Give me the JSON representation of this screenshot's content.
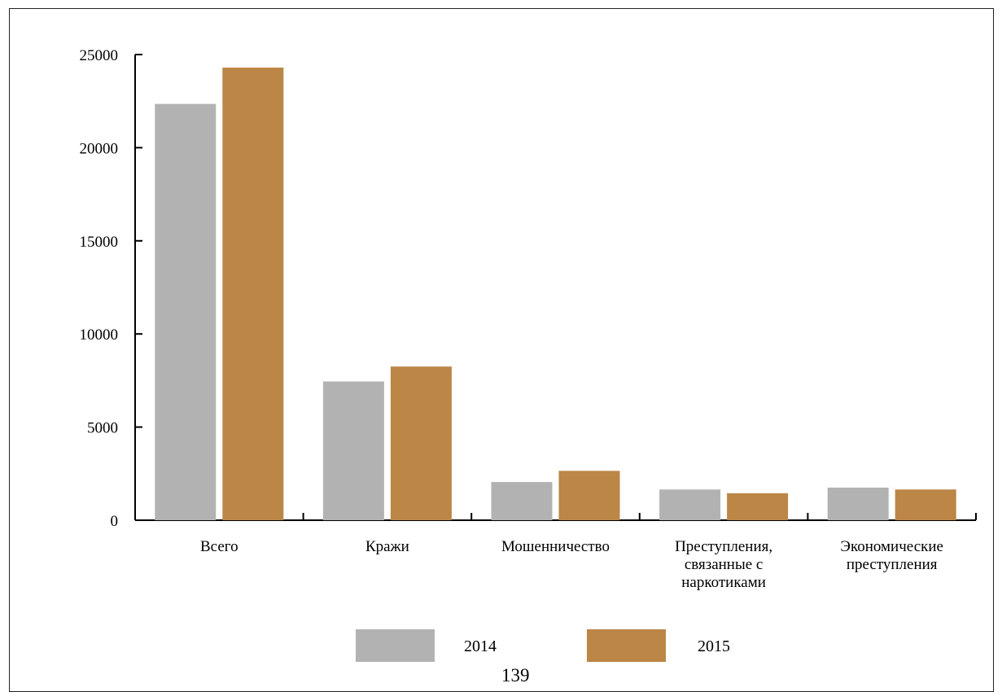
{
  "chart_data": {
    "type": "bar",
    "categories": [
      [
        "Всего"
      ],
      [
        "Кражи"
      ],
      [
        "Мошенничество"
      ],
      [
        "Преступления,",
        "связанные с",
        "наркотиками"
      ],
      [
        "Экономические",
        "преступления"
      ]
    ],
    "series": [
      {
        "name": "2014",
        "color": "#b2b2b2",
        "values": [
          22350,
          7450,
          2050,
          1650,
          1750
        ]
      },
      {
        "name": "2015",
        "color": "#bb8646",
        "values": [
          24300,
          8250,
          2650,
          1450,
          1650
        ]
      }
    ],
    "ylim": [
      0,
      25000
    ],
    "yticks": [
      0,
      5000,
      10000,
      15000,
      20000,
      25000
    ],
    "grid": false,
    "legend_position": "bottom"
  },
  "page_number": "139"
}
